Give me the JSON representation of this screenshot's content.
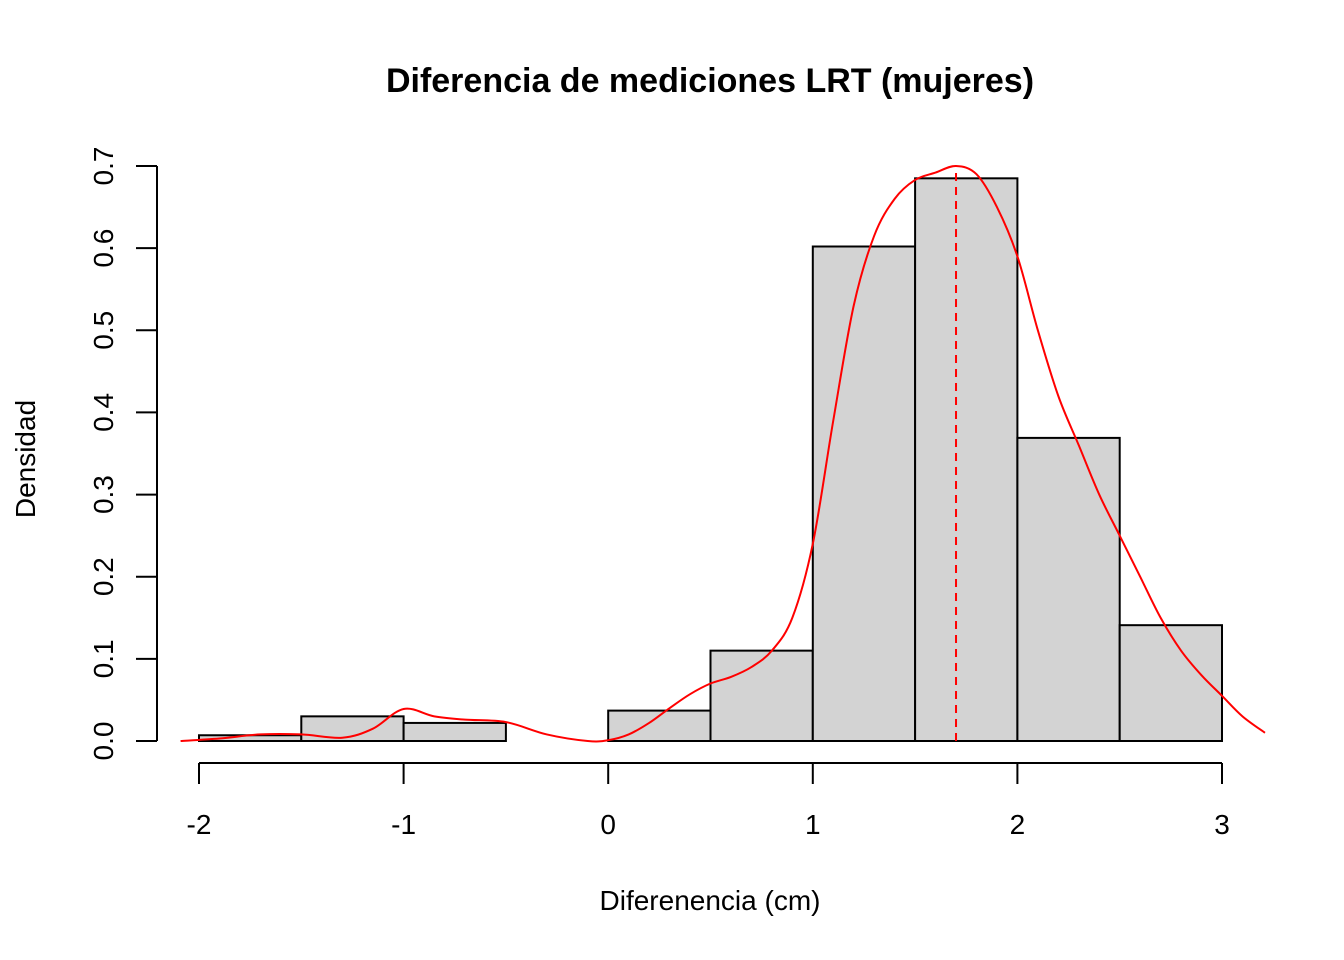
{
  "chart_data": {
    "type": "histogram",
    "title": "Diferencia de mediciones LRT (mujeres)",
    "xlabel": "Diferenencia (cm)",
    "ylabel": "Densidad",
    "xlim": [
      -2,
      3
    ],
    "ylim": [
      0,
      0.7
    ],
    "x_ticks": [
      -2,
      -1,
      0,
      1,
      2,
      3
    ],
    "x_tick_labels": [
      "-2",
      "-1",
      "0",
      "1",
      "2",
      "3"
    ],
    "y_ticks": [
      0,
      0.1,
      0.2,
      0.3,
      0.4,
      0.5,
      0.6,
      0.7
    ],
    "y_tick_labels": [
      "0.0",
      "0.1",
      "0.2",
      "0.3",
      "0.4",
      "0.5",
      "0.6",
      "0.7"
    ],
    "bins": [
      {
        "x0": -2.0,
        "x1": -1.5,
        "density": 0.007
      },
      {
        "x0": -1.5,
        "x1": -1.0,
        "density": 0.03
      },
      {
        "x0": -1.0,
        "x1": -0.5,
        "density": 0.022
      },
      {
        "x0": -0.5,
        "x1": 0.0,
        "density": 0.0
      },
      {
        "x0": 0.0,
        "x1": 0.5,
        "density": 0.037
      },
      {
        "x0": 0.5,
        "x1": 1.0,
        "density": 0.11
      },
      {
        "x0": 1.0,
        "x1": 1.5,
        "density": 0.602
      },
      {
        "x0": 1.5,
        "x1": 2.0,
        "density": 0.685
      },
      {
        "x0": 2.0,
        "x1": 2.5,
        "density": 0.369
      },
      {
        "x0": 2.5,
        "x1": 3.0,
        "density": 0.141
      }
    ],
    "density_curve": {
      "x": [
        -2.09,
        -1.9,
        -1.7,
        -1.5,
        -1.3,
        -1.15,
        -1.0,
        -0.85,
        -0.7,
        -0.5,
        -0.3,
        -0.1,
        0.0,
        0.1,
        0.2,
        0.3,
        0.4,
        0.5,
        0.6,
        0.7,
        0.8,
        0.9,
        1.0,
        1.1,
        1.2,
        1.3,
        1.4,
        1.5,
        1.6,
        1.7,
        1.8,
        1.9,
        2.0,
        2.1,
        2.2,
        2.3,
        2.4,
        2.5,
        2.6,
        2.7,
        2.8,
        2.9,
        3.0,
        3.1,
        3.21
      ],
      "y": [
        0.0,
        0.003,
        0.008,
        0.008,
        0.004,
        0.015,
        0.039,
        0.03,
        0.026,
        0.023,
        0.008,
        0.0,
        0.001,
        0.008,
        0.022,
        0.04,
        0.057,
        0.07,
        0.078,
        0.09,
        0.11,
        0.15,
        0.24,
        0.39,
        0.53,
        0.615,
        0.66,
        0.683,
        0.692,
        0.7,
        0.69,
        0.65,
        0.59,
        0.5,
        0.42,
        0.36,
        0.3,
        0.25,
        0.2,
        0.15,
        0.11,
        0.08,
        0.055,
        0.03,
        0.01
      ]
    },
    "vline": {
      "x": 1.7
    },
    "colors": {
      "bar_fill": "#d3d3d3",
      "bar_stroke": "#000000",
      "density_line": "#ff0000",
      "vline": "#ff0000"
    },
    "grid": false,
    "legend": "none"
  }
}
